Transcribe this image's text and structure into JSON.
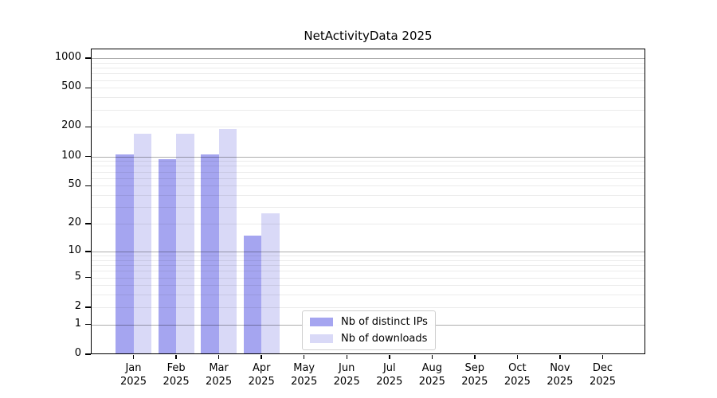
{
  "chart_data": {
    "type": "bar",
    "title": "NetActivityData 2025",
    "yscale": "log1p",
    "ylim": [
      0,
      1250
    ],
    "grid": true,
    "legend_position": "lower center-left",
    "y_ticks": [
      0,
      1,
      2,
      5,
      10,
      20,
      50,
      100,
      200,
      500,
      1000
    ],
    "major_gridlines_at": [
      1,
      10,
      100,
      1000
    ],
    "x_ticks": [
      {
        "line1": "Jan",
        "line2": "2025"
      },
      {
        "line1": "Feb",
        "line2": "2025"
      },
      {
        "line1": "Mar",
        "line2": "2025"
      },
      {
        "line1": "Apr",
        "line2": "2025"
      },
      {
        "line1": "May",
        "line2": "2025"
      },
      {
        "line1": "Jun",
        "line2": "2025"
      },
      {
        "line1": "Jul",
        "line2": "2025"
      },
      {
        "line1": "Aug",
        "line2": "2025"
      },
      {
        "line1": "Sep",
        "line2": "2025"
      },
      {
        "line1": "Oct",
        "line2": "2025"
      },
      {
        "line1": "Nov",
        "line2": "2025"
      },
      {
        "line1": "Dec",
        "line2": "2025"
      }
    ],
    "series": [
      {
        "name": "Nb of distinct IPs",
        "color": "#a5a5f0",
        "values": [
          105,
          93,
          105,
          15,
          0,
          0,
          0,
          0,
          0,
          0,
          0,
          0
        ]
      },
      {
        "name": "Nb of downloads",
        "color": "#d9d9f7",
        "values": [
          170,
          170,
          190,
          26,
          0,
          0,
          0,
          0,
          0,
          0,
          0,
          0
        ]
      }
    ],
    "colors": {
      "major_grid": "rgba(0,0,0,0.32)",
      "minor_grid": "rgba(0,0,0,0.08)",
      "axis": "#000000"
    }
  }
}
